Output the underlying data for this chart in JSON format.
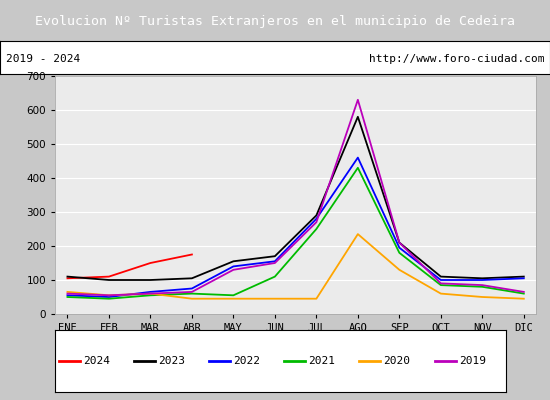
{
  "title": "Evolucion Nº Turistas Extranjeros en el municipio de Cedeira",
  "subtitle_left": "2019 - 2024",
  "subtitle_right": "http://www.foro-ciudad.com",
  "title_color": "#4f81bd",
  "months": [
    "ENE",
    "FEB",
    "MAR",
    "ABR",
    "MAY",
    "JUN",
    "JUL",
    "AGO",
    "SEP",
    "OCT",
    "NOV",
    "DIC"
  ],
  "ylim": [
    0,
    700
  ],
  "yticks": [
    0,
    100,
    200,
    300,
    400,
    500,
    600,
    700
  ],
  "series": {
    "2024": {
      "color": "#ff0000",
      "data": [
        105,
        110,
        150,
        175,
        null,
        null,
        null,
        null,
        null,
        null,
        null,
        null
      ]
    },
    "2023": {
      "color": "#000000",
      "data": [
        110,
        100,
        100,
        105,
        155,
        170,
        290,
        580,
        210,
        110,
        105,
        110
      ]
    },
    "2022": {
      "color": "#0000ff",
      "data": [
        55,
        50,
        65,
        75,
        140,
        155,
        280,
        460,
        195,
        100,
        100,
        105
      ]
    },
    "2021": {
      "color": "#00bb00",
      "data": [
        50,
        45,
        55,
        60,
        55,
        110,
        250,
        430,
        180,
        85,
        80,
        60
      ]
    },
    "2020": {
      "color": "#ffa500",
      "data": [
        65,
        55,
        60,
        45,
        45,
        45,
        45,
        235,
        130,
        60,
        50,
        45
      ]
    },
    "2019": {
      "color": "#bb00bb",
      "data": [
        60,
        55,
        60,
        65,
        130,
        150,
        270,
        630,
        210,
        90,
        85,
        65
      ]
    }
  },
  "legend_order": [
    "2024",
    "2023",
    "2022",
    "2021",
    "2020",
    "2019"
  ],
  "bg_plot": "#ebebeb",
  "bg_outer": "#c8c8c8",
  "grid_color": "#ffffff",
  "border_color": "#000000"
}
